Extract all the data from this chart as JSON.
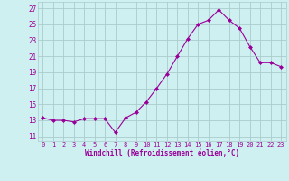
{
  "x": [
    0,
    1,
    2,
    3,
    4,
    5,
    6,
    7,
    8,
    9,
    10,
    11,
    12,
    13,
    14,
    15,
    16,
    17,
    18,
    19,
    20,
    21,
    22,
    23
  ],
  "y": [
    13.3,
    13.0,
    13.0,
    12.8,
    13.2,
    13.2,
    13.2,
    11.5,
    13.3,
    14.0,
    15.3,
    17.0,
    18.8,
    21.0,
    23.2,
    25.0,
    25.5,
    26.8,
    25.5,
    24.5,
    22.2,
    20.2,
    20.2,
    19.7
  ],
  "line_color": "#990099",
  "marker": "D",
  "marker_size": 2,
  "bg_color": "#cff0f0",
  "grid_color": "#aacccc",
  "xlabel": "Windchill (Refroidissement éolien,°C)",
  "yticks": [
    11,
    13,
    15,
    17,
    19,
    21,
    23,
    25,
    27
  ],
  "ytick_labels": [
    "11",
    "13",
    "15",
    "17",
    "19",
    "21",
    "23",
    "25",
    "27"
  ],
  "ylim": [
    10.4,
    27.8
  ],
  "xlim": [
    -0.5,
    23.5
  ],
  "xtick_labels": [
    "0",
    "1",
    "2",
    "3",
    "4",
    "5",
    "6",
    "7",
    "8",
    "9",
    "10",
    "11",
    "12",
    "13",
    "14",
    "15",
    "16",
    "17",
    "18",
    "19",
    "20",
    "21",
    "22",
    "23"
  ]
}
